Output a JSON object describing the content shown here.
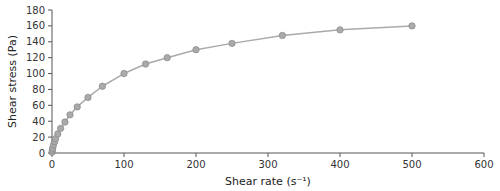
{
  "chart_data": {
    "type": "line",
    "xlabel": "Shear rate (s⁻¹)",
    "ylabel": "Shear stress (Pa)",
    "x": [
      0.1,
      0.5,
      1.0,
      2.0,
      3.5,
      5.0,
      8.0,
      12.0,
      18.0,
      25.0,
      35.0,
      50.0,
      70.0,
      100.0,
      130.0,
      160.0,
      200.0,
      250.0,
      320.0,
      400.0,
      500.0
    ],
    "series": [
      {
        "color": "#aaaaaa",
        "marker": "circle",
        "values": [
          1.0,
          3.5,
          6.0,
          10.0,
          14.0,
          18.0,
          24.0,
          31.0,
          39.0,
          48.0,
          58.0,
          70.0,
          84.0,
          100.0,
          112.0,
          120.0,
          130.0,
          138.0,
          148.0,
          155.0,
          160.0
        ]
      }
    ],
    "xlim": [
      0,
      600
    ],
    "ylim": [
      0,
      180
    ],
    "xticks": [
      0,
      100,
      200,
      300,
      400,
      500,
      600
    ],
    "yticks": [
      0,
      20,
      40,
      60,
      80,
      100,
      120,
      140,
      160,
      180
    ],
    "grid": false
  }
}
